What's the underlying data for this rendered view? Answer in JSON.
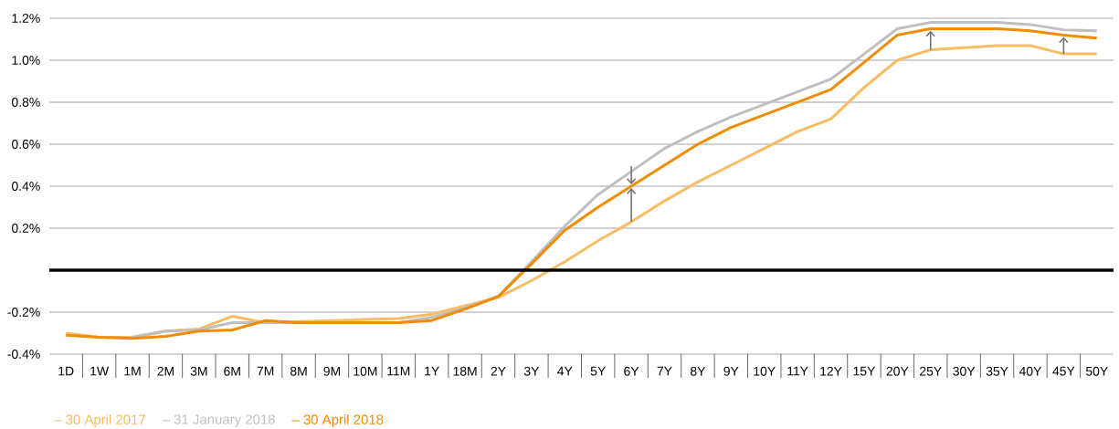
{
  "chart_data": {
    "type": "line",
    "categories": [
      "1D",
      "1W",
      "1M",
      "2M",
      "3M",
      "6M",
      "7M",
      "8M",
      "9M",
      "10M",
      "11M",
      "1Y",
      "18M",
      "2Y",
      "3Y",
      "4Y",
      "5Y",
      "6Y",
      "7Y",
      "8Y",
      "9Y",
      "10Y",
      "11Y",
      "12Y",
      "15Y",
      "20Y",
      "25Y",
      "30Y",
      "35Y",
      "40Y",
      "45Y",
      "50Y"
    ],
    "series": [
      {
        "name": "– 30 April 2017",
        "color": "#f8bc63",
        "values": [
          -0.3,
          -0.32,
          -0.32,
          -0.29,
          -0.28,
          -0.22,
          -0.25,
          -0.245,
          -0.24,
          -0.235,
          -0.23,
          -0.21,
          -0.17,
          -0.13,
          -0.05,
          0.04,
          0.14,
          0.23,
          0.33,
          0.42,
          0.5,
          0.58,
          0.66,
          0.72,
          0.87,
          1.0,
          1.05,
          1.06,
          1.07,
          1.07,
          1.03,
          1.03
        ]
      },
      {
        "name": "– 31 January 2018",
        "color": "#bfbfbf",
        "values": [
          null,
          null,
          -0.32,
          -0.29,
          -0.285,
          -0.25,
          -0.25,
          null,
          null,
          null,
          -0.25,
          -0.225,
          -0.18,
          -0.125,
          0.04,
          0.21,
          0.36,
          0.47,
          0.58,
          0.66,
          0.73,
          0.79,
          0.85,
          0.91,
          1.03,
          1.15,
          1.18,
          1.18,
          1.18,
          1.17,
          1.145,
          1.14
        ]
      },
      {
        "name": "– 30 April 2018",
        "color": "#f08c00",
        "values": [
          -0.31,
          -0.32,
          -0.325,
          -0.315,
          -0.29,
          -0.285,
          -0.24,
          -0.25,
          -0.25,
          -0.25,
          -0.25,
          -0.24,
          -0.185,
          -0.125,
          0.03,
          0.19,
          0.3,
          0.4,
          0.5,
          0.6,
          0.68,
          0.74,
          0.8,
          0.86,
          0.99,
          1.12,
          1.15,
          1.15,
          1.15,
          1.14,
          1.12,
          1.105
        ]
      }
    ],
    "ylim": [
      -0.4,
      1.2
    ],
    "yticks": [
      {
        "value": -0.4,
        "label": "-0.4%"
      },
      {
        "value": -0.2,
        "label": "-0.2%"
      },
      {
        "value": 0,
        "label": null
      },
      {
        "value": 0.2,
        "label": "0.2%"
      },
      {
        "value": 0.4,
        "label": "0.4%"
      },
      {
        "value": 0.6,
        "label": "0.6%"
      },
      {
        "value": 0.8,
        "label": "0.8%"
      },
      {
        "value": 1.0,
        "label": "1.0%"
      },
      {
        "value": 1.2,
        "label": "1.2%"
      }
    ],
    "ref_lines": [
      {
        "axis": "y",
        "value": 0,
        "color": "#000000"
      }
    ],
    "grid": "y",
    "legend": "bottom left"
  }
}
